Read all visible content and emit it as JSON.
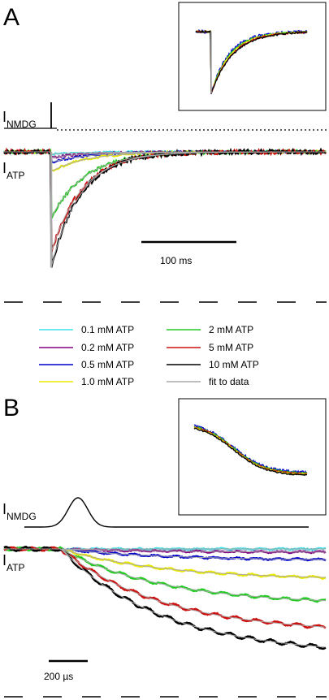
{
  "panels": {
    "a": {
      "letter": "A",
      "label_nmdg_main": "I",
      "label_nmdg_sub": "NMDG",
      "label_atp_main": "I",
      "label_atp_sub": "ATP",
      "scale_bar_label": "100 ms"
    },
    "b": {
      "letter": "B",
      "label_nmdg_main": "I",
      "label_nmdg_sub": "NMDG",
      "label_atp_main": "I",
      "label_atp_sub": "ATP",
      "scale_bar_label": "200 µs"
    }
  },
  "legend": {
    "entries": [
      {
        "label": "0.1 mM ATP",
        "color": "#40e0e8"
      },
      {
        "label": "0.2 mM ATP",
        "color": "#800080"
      },
      {
        "label": "0.5 mM ATP",
        "color": "#0000cc"
      },
      {
        "label": "1.0 mM ATP",
        "color": "#e8e800"
      },
      {
        "label": "2 mM ATP",
        "color": "#22cc22"
      },
      {
        "label": "5 mM ATP",
        "color": "#cc1111"
      },
      {
        "label": "10 mM ATP",
        "color": "#000000"
      },
      {
        "label": "fit to data",
        "color": "#a8a8a8"
      }
    ]
  },
  "chart_data": [
    {
      "type": "line",
      "panel": "A",
      "title": "",
      "xlabel": "",
      "ylabel": "",
      "scale_bar": "100 ms",
      "series": [
        {
          "name": "0.1 mM ATP",
          "color": "#40e0e8",
          "peak_fraction": 0.02,
          "tau_ms": 40
        },
        {
          "name": "0.2 mM ATP",
          "color": "#800080",
          "peak_fraction": 0.05,
          "tau_ms": 40
        },
        {
          "name": "0.5 mM ATP",
          "color": "#0000cc",
          "peak_fraction": 0.09,
          "tau_ms": 40
        },
        {
          "name": "1.0 mM ATP",
          "color": "#e8e800",
          "peak_fraction": 0.17,
          "tau_ms": 38
        },
        {
          "name": "2 mM ATP",
          "color": "#22cc22",
          "peak_fraction": 0.57,
          "tau_ms": 36
        },
        {
          "name": "5 mM ATP",
          "color": "#cc1111",
          "peak_fraction": 0.87,
          "tau_ms": 33
        },
        {
          "name": "10 mM ATP",
          "color": "#000000",
          "peak_fraction": 1.0,
          "tau_ms": 31
        }
      ],
      "fit_color": "#a8a8a8"
    },
    {
      "type": "line",
      "panel": "B",
      "title": "",
      "xlabel": "",
      "ylabel": "",
      "scale_bar": "200 µs",
      "series": [
        {
          "name": "0.1 mM ATP",
          "color": "#40e0e8",
          "final_fraction": 0.0
        },
        {
          "name": "0.2 mM ATP",
          "color": "#800080",
          "final_fraction": 0.03
        },
        {
          "name": "0.5 mM ATP",
          "color": "#0000cc",
          "final_fraction": 0.1
        },
        {
          "name": "1.0 mM ATP",
          "color": "#e8e800",
          "final_fraction": 0.27
        },
        {
          "name": "2 mM ATP",
          "color": "#22cc22",
          "final_fraction": 0.49
        },
        {
          "name": "5 mM ATP",
          "color": "#cc1111",
          "final_fraction": 0.74
        },
        {
          "name": "10 mM ATP",
          "color": "#000000",
          "final_fraction": 0.93
        }
      ],
      "fit_color": "#a8a8a8"
    }
  ]
}
